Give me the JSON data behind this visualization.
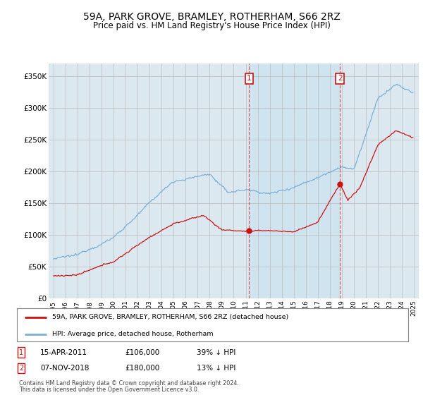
{
  "title": "59A, PARK GROVE, BRAMLEY, ROTHERHAM, S66 2RZ",
  "subtitle": "Price paid vs. HM Land Registry's House Price Index (HPI)",
  "title_fontsize": 10,
  "subtitle_fontsize": 8.5,
  "ylim": [
    0,
    370000
  ],
  "yticks": [
    0,
    50000,
    100000,
    150000,
    200000,
    250000,
    300000,
    350000
  ],
  "ytick_labels": [
    "£0",
    "£50K",
    "£100K",
    "£150K",
    "£200K",
    "£250K",
    "£300K",
    "£350K"
  ],
  "hpi_color": "#7bafd4",
  "price_color": "#cc1111",
  "background_color": "#dce8f0",
  "shade_color": "#d0e4f0",
  "grid_color": "#bbbbbb",
  "sale1_year": 2011.29,
  "sale1_price": 106000,
  "sale2_year": 2018.85,
  "sale2_price": 180000,
  "legend_label1": "59A, PARK GROVE, BRAMLEY, ROTHERHAM, S66 2RZ (detached house)",
  "legend_label2": "HPI: Average price, detached house, Rotherham",
  "sale1_date": "15-APR-2011",
  "sale1_pct": "39% ↓ HPI",
  "sale2_date": "07-NOV-2018",
  "sale2_pct": "13% ↓ HPI",
  "footer1": "Contains HM Land Registry data © Crown copyright and database right 2024.",
  "footer2": "This data is licensed under the Open Government Licence v3.0."
}
